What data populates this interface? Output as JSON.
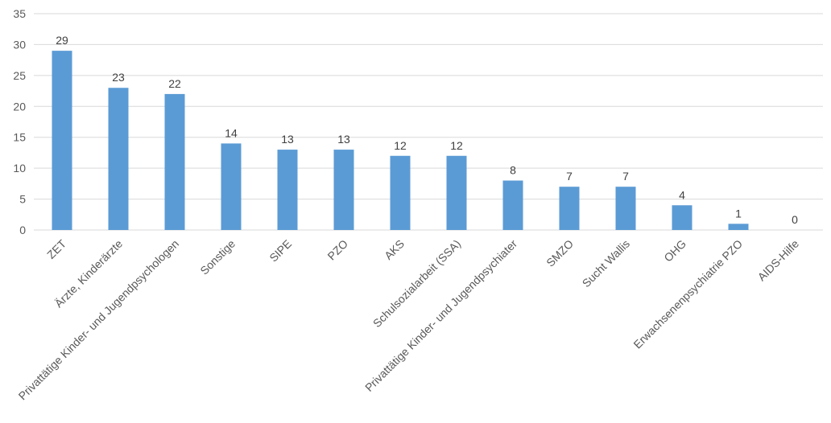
{
  "chart_data": {
    "type": "bar",
    "categories": [
      "ZET",
      "Ärzte, Kinderärzte",
      "Privattätige Kinder- und Jugendpsychologen",
      "Sonstige",
      "SIPE",
      "PZO",
      "AKS",
      "Schulsozialarbeit (SSA)",
      "Privattätige Kinder- und Jugendpsychiater",
      "SMZO",
      "Sucht Wallis",
      "OHG",
      "Erwachsenenpsychiatrie PZO",
      "AIDS-Hilfe"
    ],
    "values": [
      29,
      23,
      22,
      14,
      13,
      13,
      12,
      12,
      8,
      7,
      7,
      4,
      1,
      0
    ],
    "color": "#5b9bd5",
    "ylim": [
      0,
      35
    ],
    "yticks": [
      0,
      5,
      10,
      15,
      20,
      25,
      30,
      35
    ],
    "grid": true
  }
}
